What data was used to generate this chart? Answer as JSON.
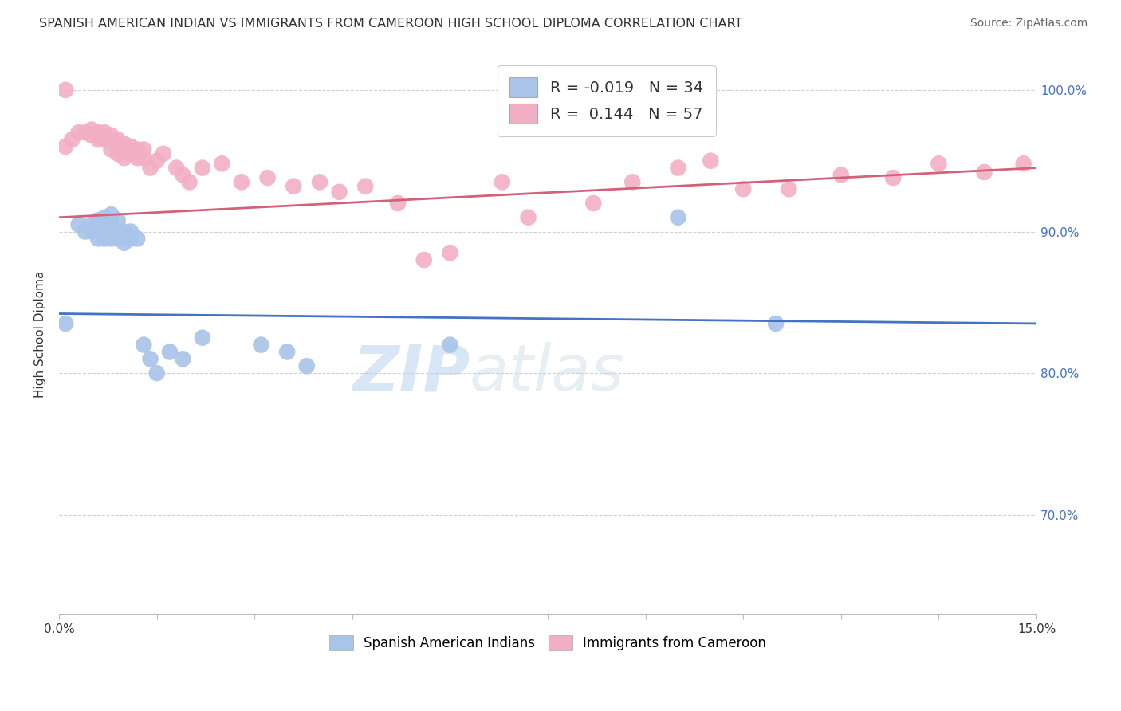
{
  "title": "SPANISH AMERICAN INDIAN VS IMMIGRANTS FROM CAMEROON HIGH SCHOOL DIPLOMA CORRELATION CHART",
  "source": "Source: ZipAtlas.com",
  "ylabel": "High School Diploma",
  "xlim": [
    0.0,
    0.15
  ],
  "ylim": [
    0.63,
    1.025
  ],
  "x_ticks": [
    0.0,
    0.015,
    0.03,
    0.045,
    0.06,
    0.075,
    0.09,
    0.105,
    0.12,
    0.135,
    0.15
  ],
  "x_tick_labels": [
    "0.0%",
    "",
    "",
    "",
    "",
    "",
    "",
    "",
    "",
    "",
    "15.0%"
  ],
  "y_ticks": [
    0.7,
    0.8,
    0.9,
    1.0
  ],
  "y_tick_labels": [
    "70.0%",
    "80.0%",
    "90.0%",
    "100.0%"
  ],
  "blue_R": -0.019,
  "blue_N": 34,
  "pink_R": 0.144,
  "pink_N": 57,
  "blue_color": "#a8c4e8",
  "pink_color": "#f2afc4",
  "blue_line_color": "#4472c4",
  "pink_line_color": "#d4607a",
  "watermark_text": "ZIP",
  "watermark_text2": "atlas",
  "background_color": "#ffffff",
  "grid_color": "#d0d0d0",
  "blue_x": [
    0.001,
    0.003,
    0.004,
    0.005,
    0.005,
    0.006,
    0.006,
    0.006,
    0.007,
    0.007,
    0.007,
    0.008,
    0.008,
    0.008,
    0.009,
    0.009,
    0.009,
    0.01,
    0.01,
    0.011,
    0.011,
    0.012,
    0.013,
    0.014,
    0.015,
    0.017,
    0.019,
    0.022,
    0.031,
    0.035,
    0.038,
    0.06,
    0.095,
    0.11
  ],
  "blue_y": [
    0.835,
    0.905,
    0.9,
    0.905,
    0.9,
    0.908,
    0.902,
    0.895,
    0.91,
    0.905,
    0.895,
    0.912,
    0.905,
    0.895,
    0.908,
    0.9,
    0.895,
    0.9,
    0.892,
    0.9,
    0.895,
    0.895,
    0.82,
    0.81,
    0.8,
    0.815,
    0.81,
    0.825,
    0.82,
    0.815,
    0.805,
    0.82,
    0.91,
    0.835
  ],
  "pink_x": [
    0.001,
    0.002,
    0.003,
    0.004,
    0.005,
    0.005,
    0.006,
    0.006,
    0.007,
    0.007,
    0.008,
    0.008,
    0.008,
    0.009,
    0.009,
    0.009,
    0.01,
    0.01,
    0.01,
    0.011,
    0.011,
    0.012,
    0.012,
    0.013,
    0.013,
    0.014,
    0.015,
    0.016,
    0.018,
    0.019,
    0.02,
    0.022,
    0.025,
    0.028,
    0.032,
    0.036,
    0.04,
    0.043,
    0.047,
    0.052,
    0.056,
    0.06,
    0.068,
    0.072,
    0.082,
    0.088,
    0.095,
    0.1,
    0.105,
    0.112,
    0.12,
    0.128,
    0.135,
    0.142,
    0.148,
    0.152,
    0.001
  ],
  "pink_y": [
    0.96,
    0.965,
    0.97,
    0.97,
    0.972,
    0.968,
    0.97,
    0.965,
    0.97,
    0.965,
    0.968,
    0.965,
    0.958,
    0.965,
    0.96,
    0.955,
    0.962,
    0.958,
    0.952,
    0.96,
    0.955,
    0.958,
    0.952,
    0.958,
    0.952,
    0.945,
    0.95,
    0.955,
    0.945,
    0.94,
    0.935,
    0.945,
    0.948,
    0.935,
    0.938,
    0.932,
    0.935,
    0.928,
    0.932,
    0.92,
    0.88,
    0.885,
    0.935,
    0.91,
    0.92,
    0.935,
    0.945,
    0.95,
    0.93,
    0.93,
    0.94,
    0.938,
    0.948,
    0.942,
    0.948,
    0.94,
    1.0
  ]
}
